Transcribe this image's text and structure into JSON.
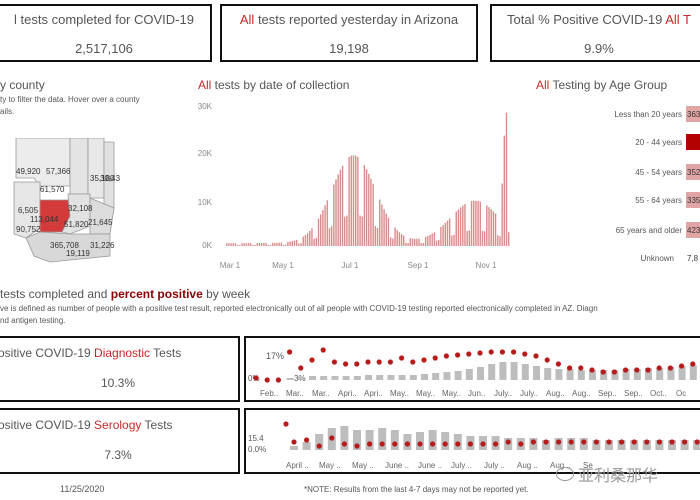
{
  "kpis": {
    "completed": {
      "prefix": "",
      "title": "l tests completed for COVID-19",
      "value": "2,517,106"
    },
    "yesterday": {
      "prefix": "All",
      "title": " tests reported yesterday in Arizona",
      "value": "19,198"
    },
    "positive": {
      "title": "Total % Positive COVID-19 ",
      "title_red": "All T",
      "value": "9.9%"
    }
  },
  "county": {
    "title": "y county",
    "instr1": "ty to filter the data. Hover over a county",
    "instr2": "ails.",
    "labels": [
      "49,920",
      "57,366",
      "35,180",
      "30,433",
      "61,570",
      "6,505",
      "32,108",
      "113,044",
      "51,820",
      "21,645",
      "90,752",
      "365,708",
      "31,226",
      "19,119"
    ]
  },
  "collection": {
    "title_red": "All",
    "title": " tests by date of collection",
    "yticks": [
      "30K",
      "20K",
      "10K",
      "0K"
    ],
    "xticks": [
      "Mar 1",
      "May 1",
      "Jul 1",
      "Sep 1",
      "Nov 1"
    ]
  },
  "age": {
    "title_red": "All",
    "title": " Testing by Age Group",
    "groups": [
      {
        "label": "Less than 20 years",
        "value": "363",
        "level": 0.35
      },
      {
        "label": "20 - 44 years",
        "value": "",
        "level": 1.0
      },
      {
        "label": "45 - 54 years",
        "value": "352",
        "level": 0.35
      },
      {
        "label": "55 - 64 years",
        "value": "335",
        "level": 0.33
      },
      {
        "label": "65 years and older",
        "value": "423",
        "level": 0.4
      },
      {
        "label": "Unknown",
        "value": "7,8",
        "level": 0
      }
    ]
  },
  "weekly": {
    "title_a": "tests completed ",
    "title_b": "and ",
    "title_c": "percent positive",
    "title_d": " by week",
    "note1": "ve is defined as number of people with a positive test result, reported electronically out of all people with COVID-19 testing reported electronically completed in AZ. Diagn",
    "note2": "nd antigen testing."
  },
  "diagnostic": {
    "title_a": "ositive COVID-19 ",
    "title_red": "Diagnostic",
    "title_b": " Tests",
    "value": "10.3%",
    "pct_top": "17%",
    "pct_low": "0%",
    "pct_mid": "3%",
    "months": [
      "Feb..",
      "Mar..",
      "Mar..",
      "Apri..",
      "Apri..",
      "May..",
      "May..",
      "May..",
      "Jun..",
      "July..",
      "July..",
      "Aug..",
      "Aug..",
      "Sep..",
      "Sep..",
      "Oct..",
      "Oc"
    ]
  },
  "serology": {
    "title_a": "ositive COVID-19 ",
    "title_red": "Serology",
    "title_b": " Tests",
    "value": "7.3%",
    "pct_top": "15.4",
    "pct_low": "0.0%",
    "months": [
      "April ..",
      "May ..",
      "May ..",
      "June ..",
      "June ..",
      "July ..",
      "July ..",
      "Aug ..",
      "Aug ..",
      "Se"
    ]
  },
  "footer": {
    "date": "11/25/2020",
    "note": "*NOTE: Results from the last 4-7 days may not be reported yet.",
    "watermark": "亚利桑那华"
  }
}
